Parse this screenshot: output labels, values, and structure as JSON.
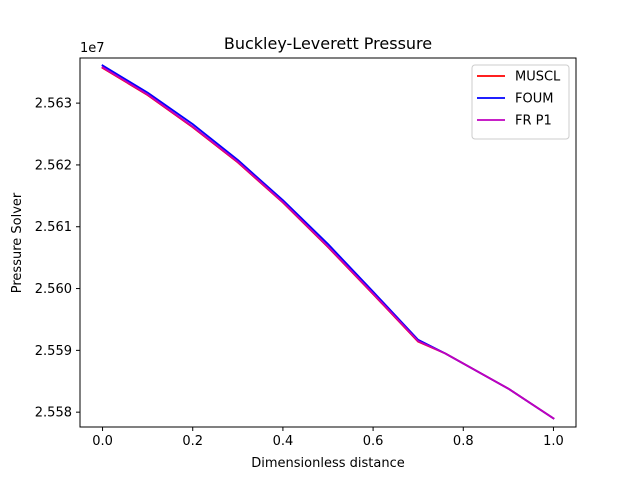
{
  "chart_data": {
    "type": "line",
    "title": "Buckley-Leverett Pressure",
    "xlabel": "Dimensionless distance",
    "ylabel": "Pressure Solver",
    "y_offset_label": "1e7",
    "x_ticks": [
      0.0,
      0.2,
      0.4,
      0.6,
      0.8,
      1.0
    ],
    "x_tick_labels": [
      "0.0",
      "0.2",
      "0.4",
      "0.6",
      "0.8",
      "1.0"
    ],
    "y_ticks": [
      2.558,
      2.559,
      2.56,
      2.561,
      2.562,
      2.563
    ],
    "y_tick_labels": [
      "2.558",
      "2.559",
      "2.560",
      "2.561",
      "2.562",
      "2.563"
    ],
    "xlim": [
      -0.05,
      1.05
    ],
    "ylim": [
      2.55776,
      2.56373
    ],
    "legend_position": "top-right",
    "grid": false,
    "series": [
      {
        "name": "MUSCL",
        "color": "#ff0000",
        "x": [
          0.0,
          0.1,
          0.2,
          0.3,
          0.4,
          0.5,
          0.6,
          0.7,
          0.76,
          0.9,
          1.0
        ],
        "y": [
          2.56357,
          2.56313,
          2.56261,
          2.56204,
          2.56139,
          2.56067,
          2.55991,
          2.55914,
          2.55895,
          2.55838,
          2.5579
        ]
      },
      {
        "name": "FOUM",
        "color": "#0000ff",
        "x": [
          0.0,
          0.1,
          0.2,
          0.3,
          0.4,
          0.5,
          0.6,
          0.7,
          0.76,
          0.9,
          1.0
        ],
        "y": [
          2.56361,
          2.56317,
          2.56266,
          2.56208,
          2.56143,
          2.56072,
          2.55995,
          2.55917,
          2.55895,
          2.55838,
          2.5579
        ]
      },
      {
        "name": "FR P1",
        "color": "#bf00bf",
        "x": [
          0.0,
          0.1,
          0.2,
          0.3,
          0.4,
          0.5,
          0.6,
          0.7,
          0.76,
          0.9,
          1.0
        ],
        "y": [
          2.56358,
          2.56314,
          2.56262,
          2.56205,
          2.5614,
          2.56068,
          2.55992,
          2.55915,
          2.55895,
          2.55838,
          2.5579
        ]
      }
    ]
  }
}
